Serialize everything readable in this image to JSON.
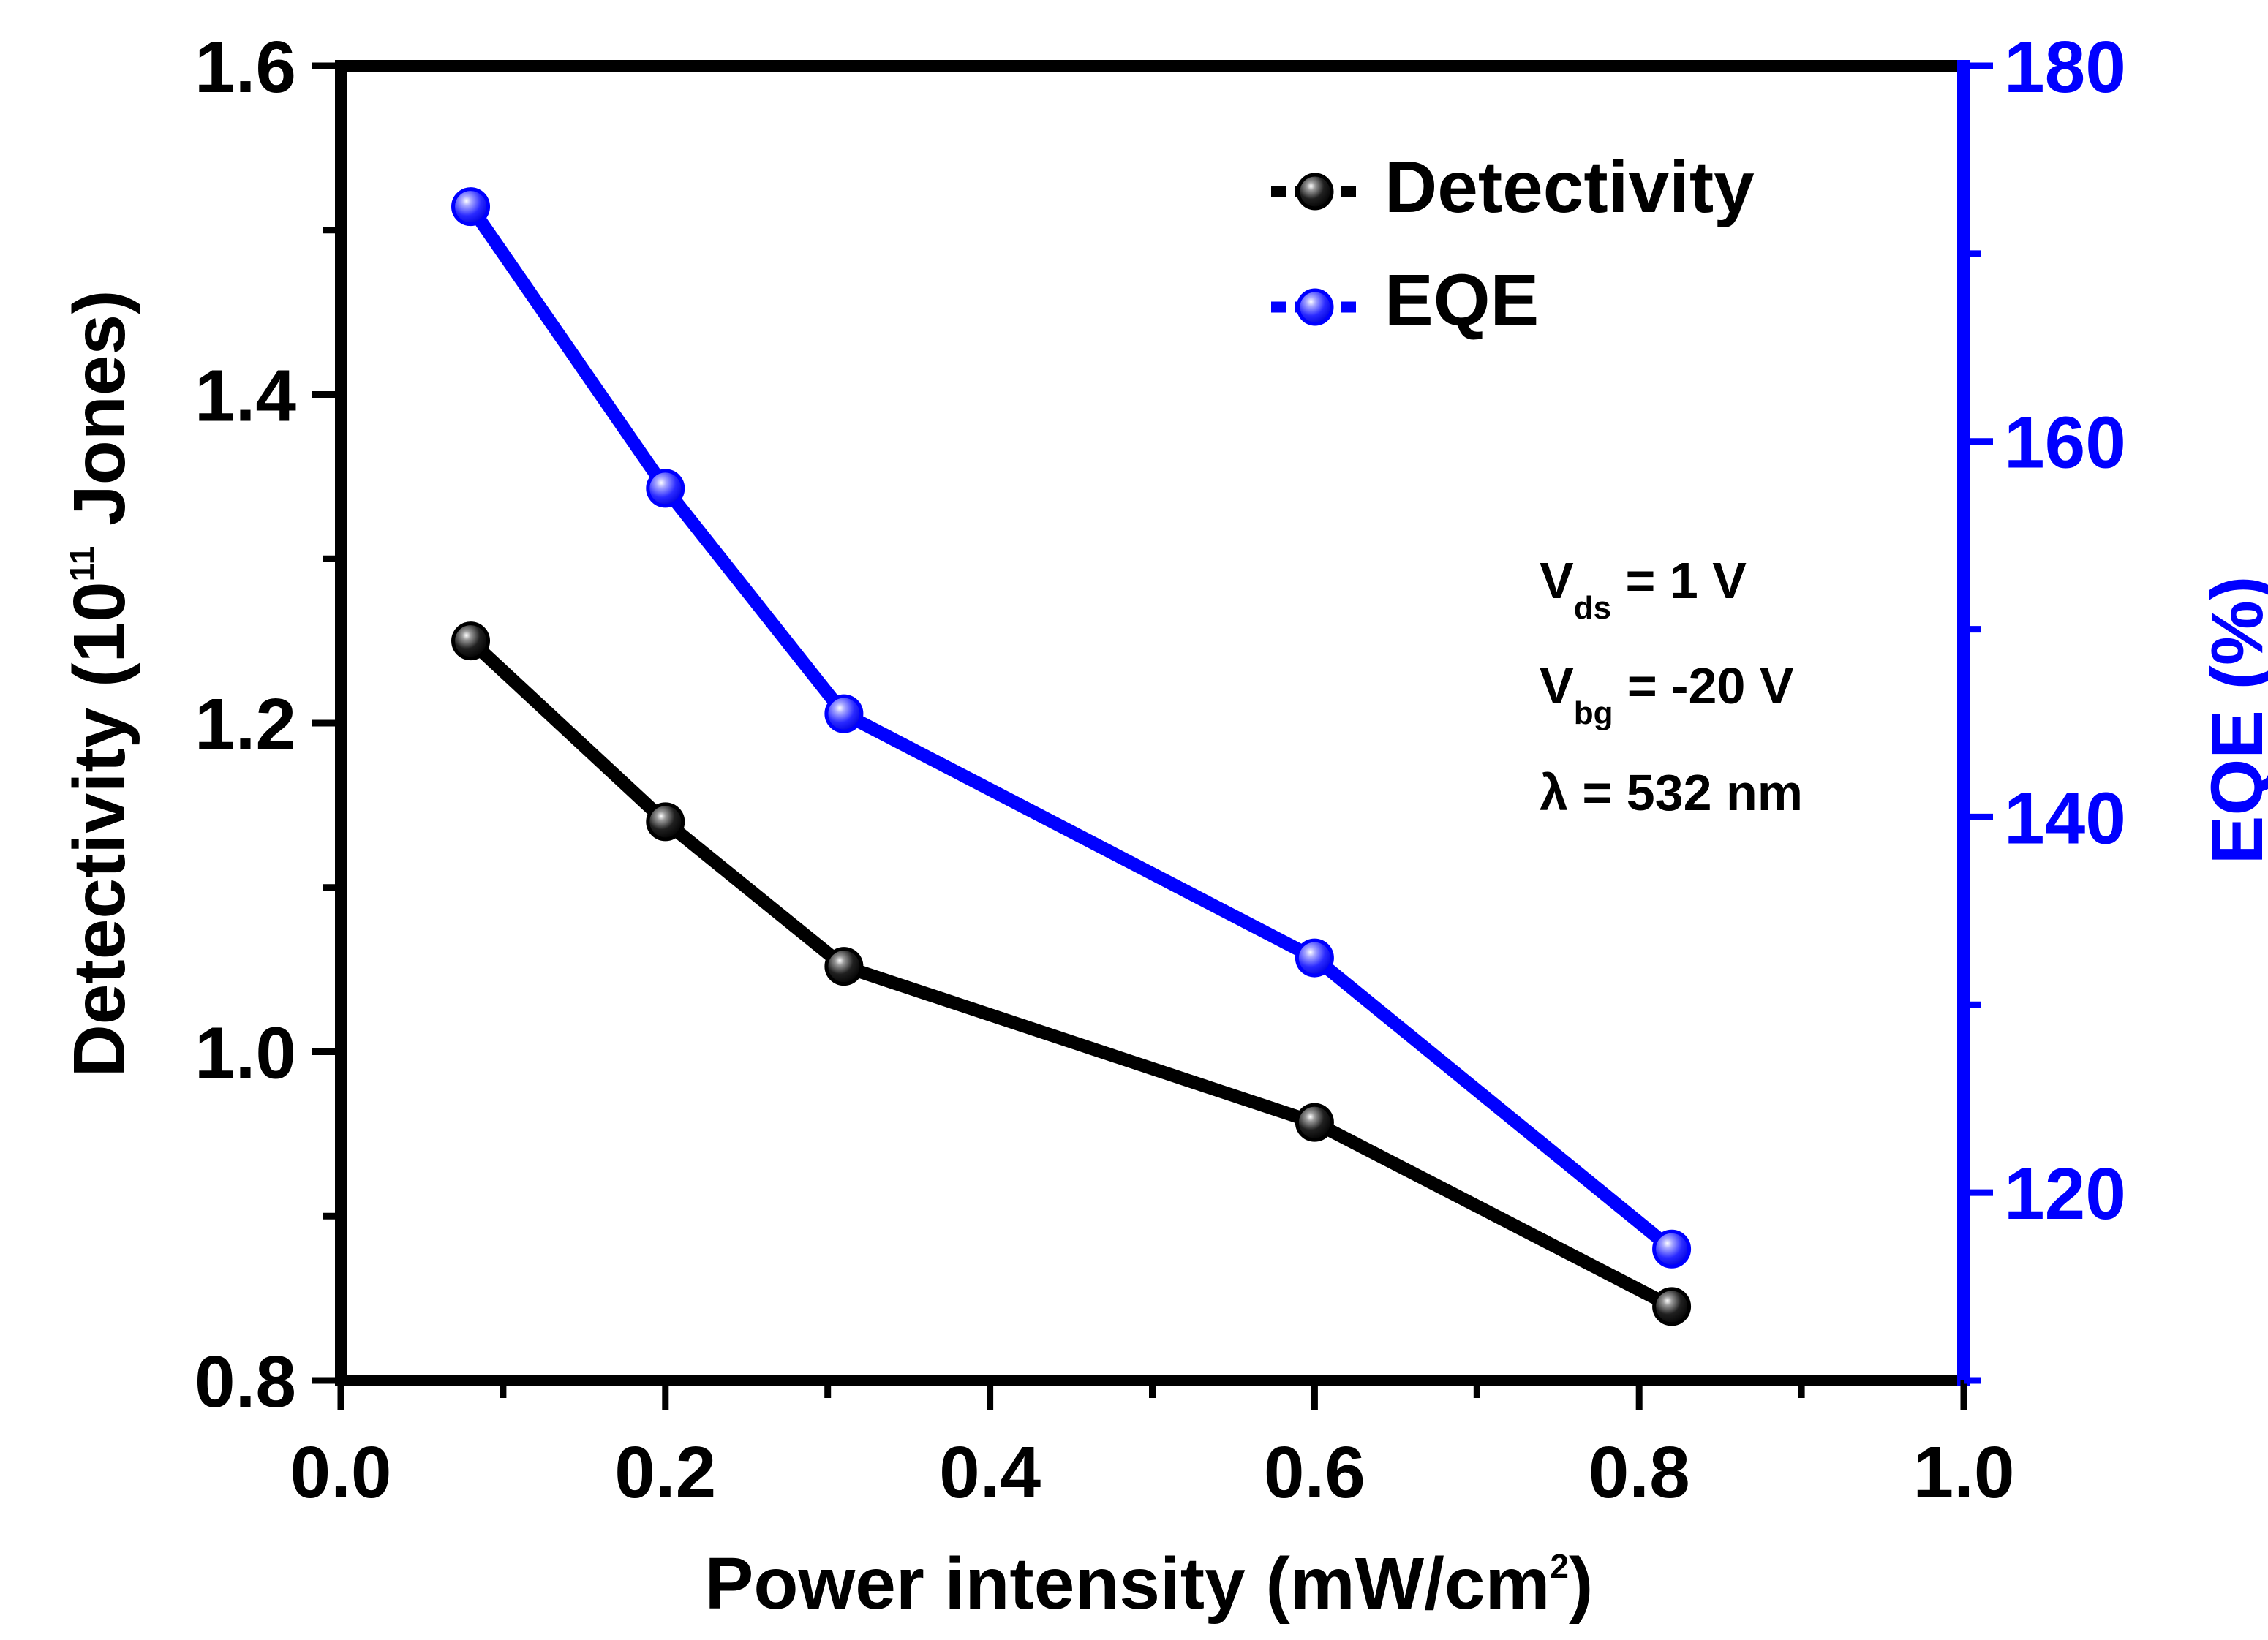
{
  "chart_data": {
    "type": "line",
    "x": [
      0.08,
      0.2,
      0.31,
      0.6,
      0.82
    ],
    "series": [
      {
        "name": "Detectivity",
        "axis": "left",
        "color": "#000000",
        "values": [
          1.25,
          1.14,
          1.052,
          0.957,
          0.845
        ]
      },
      {
        "name": "EQE",
        "axis": "right",
        "color": "#0000ff",
        "values": [
          172.5,
          157.5,
          145.5,
          132.5,
          117
        ]
      }
    ],
    "xlabel": {
      "main": "Power intensity (mW/cm",
      "sup": "2",
      "end": ")"
    },
    "ylabel_left": {
      "main": "Detectivity (10",
      "sup": "11",
      "end": " Jones)"
    },
    "ylabel_right": "EQE (%)",
    "xlim": [
      0.0,
      1.0
    ],
    "ylim_left": [
      0.8,
      1.6
    ],
    "ylim_right": [
      110,
      180
    ],
    "xticks": [
      "0.0",
      "0.2",
      "0.4",
      "0.6",
      "0.8",
      "1.0"
    ],
    "yticks_left": [
      "0.8",
      "1.0",
      "1.2",
      "1.4",
      "1.6"
    ],
    "yticks_right": [
      "120",
      "140",
      "160",
      "180"
    ],
    "legend_position": "top-right",
    "annotations": {
      "vds": {
        "main": "V",
        "sub": "ds",
        "rest": " = 1 V"
      },
      "vbg": {
        "main": "V",
        "sub": "bg",
        "rest": " = -20 V"
      },
      "lambda": "λ = 532 nm"
    },
    "colors": {
      "left_axis": "#000000",
      "right_axis": "#0000ff"
    }
  }
}
